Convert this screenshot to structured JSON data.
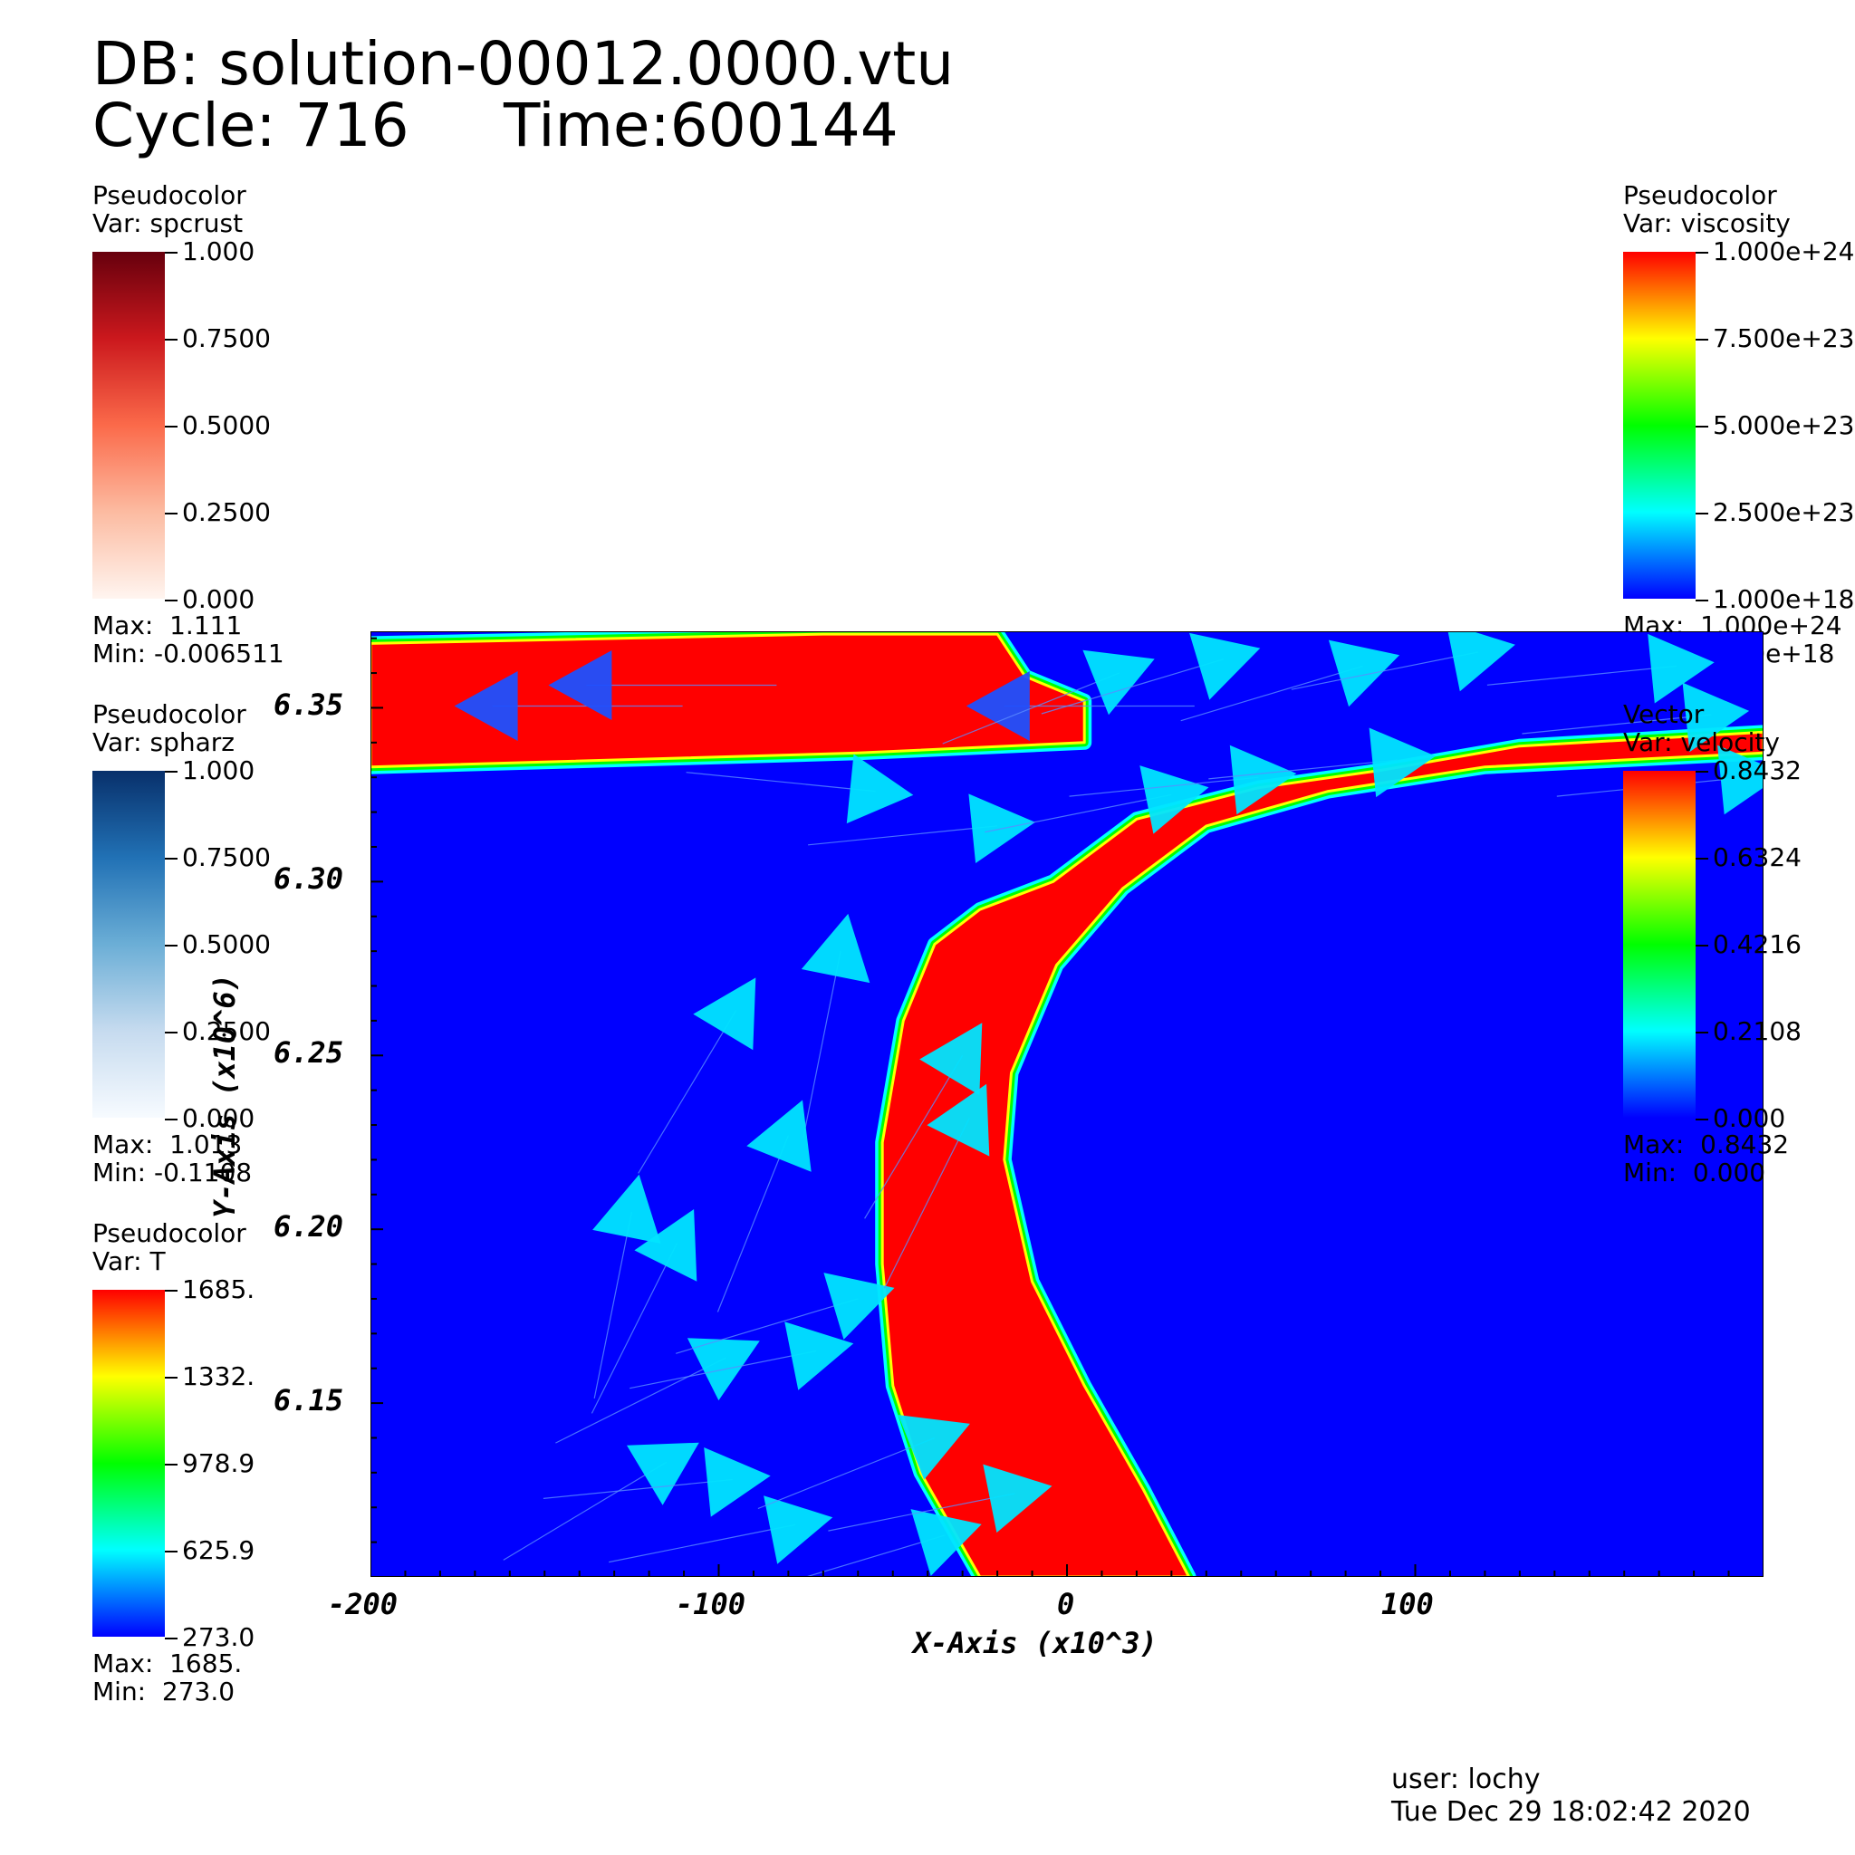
{
  "header": {
    "db_line": "DB: solution-00012.0000.vtu",
    "cycle_label": "Cycle: 716",
    "time_label": "Time:600144"
  },
  "legends": [
    {
      "id": "spcrust",
      "title": "Pseudocolor",
      "var": "Var: spcrust",
      "ticks": [
        "1.000",
        "0.7500",
        "0.5000",
        "0.2500",
        "0.000"
      ],
      "max": "Max:  1.111",
      "min": "Min: -0.006511",
      "colors": [
        "#67000d",
        "#cb181d",
        "#fb6a4a",
        "#fcbba1",
        "#fff5f0"
      ]
    },
    {
      "id": "spharz",
      "title": "Pseudocolor",
      "var": "Var: spharz",
      "ticks": [
        "1.000",
        "0.7500",
        "0.5000",
        "0.2500",
        "0.000"
      ],
      "max": "Max:  1.013",
      "min": "Min: -0.1108",
      "colors": [
        "#08306b",
        "#2171b5",
        "#6baed6",
        "#c6dbef",
        "#f7fbff"
      ]
    },
    {
      "id": "T",
      "title": "Pseudocolor",
      "var": "Var: T",
      "ticks": [
        "1685.",
        "1332.",
        "978.9",
        "625.9",
        "273.0"
      ],
      "max": "Max:  1685.",
      "min": "Min:  273.0",
      "colors": [
        "#ff0000",
        "#ffff00",
        "#00ff00",
        "#00ffff",
        "#0000ff"
      ]
    },
    {
      "id": "viscosity",
      "title": "Pseudocolor",
      "var": "Var: viscosity",
      "ticks": [
        "1.000e+24",
        "7.500e+23",
        "5.000e+23",
        "2.500e+23",
        "1.000e+18"
      ],
      "max": "Max:  1.000e+24",
      "min": "Min:  1.000e+18",
      "colors": [
        "#ff0000",
        "#ffff00",
        "#00ff00",
        "#00ffff",
        "#0000ff"
      ]
    },
    {
      "id": "velocity",
      "title": "Vector",
      "var": "Var: velocity",
      "ticks": [
        "0.8432",
        "0.6324",
        "0.4216",
        "0.2108",
        "0.000"
      ],
      "max": "Max:  0.8432",
      "min": "Min:  0.000",
      "colors": [
        "#ff0000",
        "#ffff00",
        "#00ff00",
        "#00ffff",
        "#0000ff"
      ]
    }
  ],
  "footer": {
    "user": "user: lochy",
    "date": "Tue Dec 29 18:02:42 2020"
  },
  "chart_data": {
    "type": "heatmap",
    "xlabel": "X-Axis (x10^3)",
    "ylabel": "Y-Axis (x10^6)",
    "xlim": [
      -200,
      200
    ],
    "ylim": [
      6.1,
      6.372
    ],
    "xticks": [
      -200,
      -100,
      0,
      100
    ],
    "yticks": [
      6.15,
      6.2,
      6.25,
      6.3,
      6.35
    ],
    "ytick_labels": [
      "6.15",
      "6.20",
      "6.25",
      "6.30",
      "6.35"
    ],
    "field": "viscosity",
    "colors": {
      "background": "#0000ff",
      "high": "#ff0000",
      "edge_yellow": "#ffff00",
      "edge_green": "#00ff00",
      "edge_cyan": "#00ffff",
      "arrow": "#00e5ff"
    },
    "regions": [
      {
        "name": "overriding-plate",
        "polygon": [
          [
            -200,
            6.3685
          ],
          [
            -70,
            6.3712
          ],
          [
            -20,
            6.3712
          ],
          [
            -12,
            6.359
          ],
          [
            5,
            6.352
          ],
          [
            5,
            6.34
          ],
          [
            -60,
            6.337
          ],
          [
            -200,
            6.333
          ]
        ]
      },
      {
        "name": "slab",
        "polygon": [
          [
            -25,
            6.292
          ],
          [
            -4,
            6.3
          ],
          [
            20,
            6.318
          ],
          [
            55,
            6.327
          ],
          [
            90,
            6.332
          ],
          [
            130,
            6.339
          ],
          [
            200,
            6.343
          ],
          [
            200,
            6.337
          ],
          [
            120,
            6.333
          ],
          [
            75,
            6.326
          ],
          [
            40,
            6.316
          ],
          [
            16,
            6.298
          ],
          [
            -3,
            6.276
          ],
          [
            -16,
            6.245
          ],
          [
            -18,
            6.22
          ],
          [
            -10,
            6.185
          ],
          [
            5,
            6.155
          ],
          [
            22,
            6.125
          ],
          [
            35,
            6.1
          ],
          [
            -25,
            6.1
          ],
          [
            -42,
            6.13
          ],
          [
            -50,
            6.155
          ],
          [
            -53,
            6.19
          ],
          [
            -53,
            6.225
          ],
          [
            -47,
            6.26
          ],
          [
            -38,
            6.282
          ]
        ]
      }
    ],
    "arrows": [
      {
        "x": -165,
        "y": 6.3505,
        "u": -1,
        "v": 0
      },
      {
        "x": -138,
        "y": 6.3565,
        "u": -1,
        "v": 0
      },
      {
        "x": -18,
        "y": 6.3505,
        "u": -1,
        "v": 0
      },
      {
        "x": -55,
        "y": 6.326,
        "u": 1,
        "v": -0.1
      },
      {
        "x": -20,
        "y": 6.316,
        "u": 1,
        "v": 0.1
      },
      {
        "x": -65,
        "y": 6.28,
        "u": 0.2,
        "v": 1
      },
      {
        "x": -95,
        "y": 6.263,
        "u": 0.6,
        "v": 1
      },
      {
        "x": -80,
        "y": 6.227,
        "u": 0.4,
        "v": 1
      },
      {
        "x": -125,
        "y": 6.205,
        "u": 0.2,
        "v": 1
      },
      {
        "x": -112,
        "y": 6.196,
        "u": 0.5,
        "v": 1
      },
      {
        "x": -98,
        "y": 6.163,
        "u": 1,
        "v": 0.5
      },
      {
        "x": -72,
        "y": 6.165,
        "u": 1,
        "v": 0.2
      },
      {
        "x": -60,
        "y": 6.18,
        "u": 1,
        "v": 0.3
      },
      {
        "x": -115,
        "y": 6.133,
        "u": 1,
        "v": 0.6
      },
      {
        "x": -96,
        "y": 6.128,
        "u": 1,
        "v": 0.1
      },
      {
        "x": -78,
        "y": 6.115,
        "u": 1,
        "v": 0.2
      },
      {
        "x": -38,
        "y": 6.14,
        "u": 1,
        "v": 0.4
      },
      {
        "x": -35,
        "y": 6.112,
        "u": 1,
        "v": 0.3
      },
      {
        "x": -15,
        "y": 6.124,
        "u": 1,
        "v": 0.2
      },
      {
        "x": -30,
        "y": 6.25,
        "u": 0.6,
        "v": 1
      },
      {
        "x": -28,
        "y": 6.232,
        "u": 0.5,
        "v": 1
      },
      {
        "x": 30,
        "y": 6.325,
        "u": 1,
        "v": 0.2
      },
      {
        "x": 55,
        "y": 6.33,
        "u": 1,
        "v": 0.1
      },
      {
        "x": 95,
        "y": 6.335,
        "u": 1,
        "v": 0.1
      },
      {
        "x": 15,
        "y": 6.36,
        "u": 1,
        "v": 0.4
      },
      {
        "x": 45,
        "y": 6.364,
        "u": 1,
        "v": 0.3
      },
      {
        "x": 85,
        "y": 6.362,
        "u": 1,
        "v": 0.3
      },
      {
        "x": 118,
        "y": 6.366,
        "u": 1,
        "v": 0.2
      },
      {
        "x": 175,
        "y": 6.362,
        "u": 1,
        "v": 0.1
      },
      {
        "x": 185,
        "y": 6.348,
        "u": 1,
        "v": 0.1
      },
      {
        "x": 195,
        "y": 6.33,
        "u": 1,
        "v": 0.1
      }
    ]
  }
}
